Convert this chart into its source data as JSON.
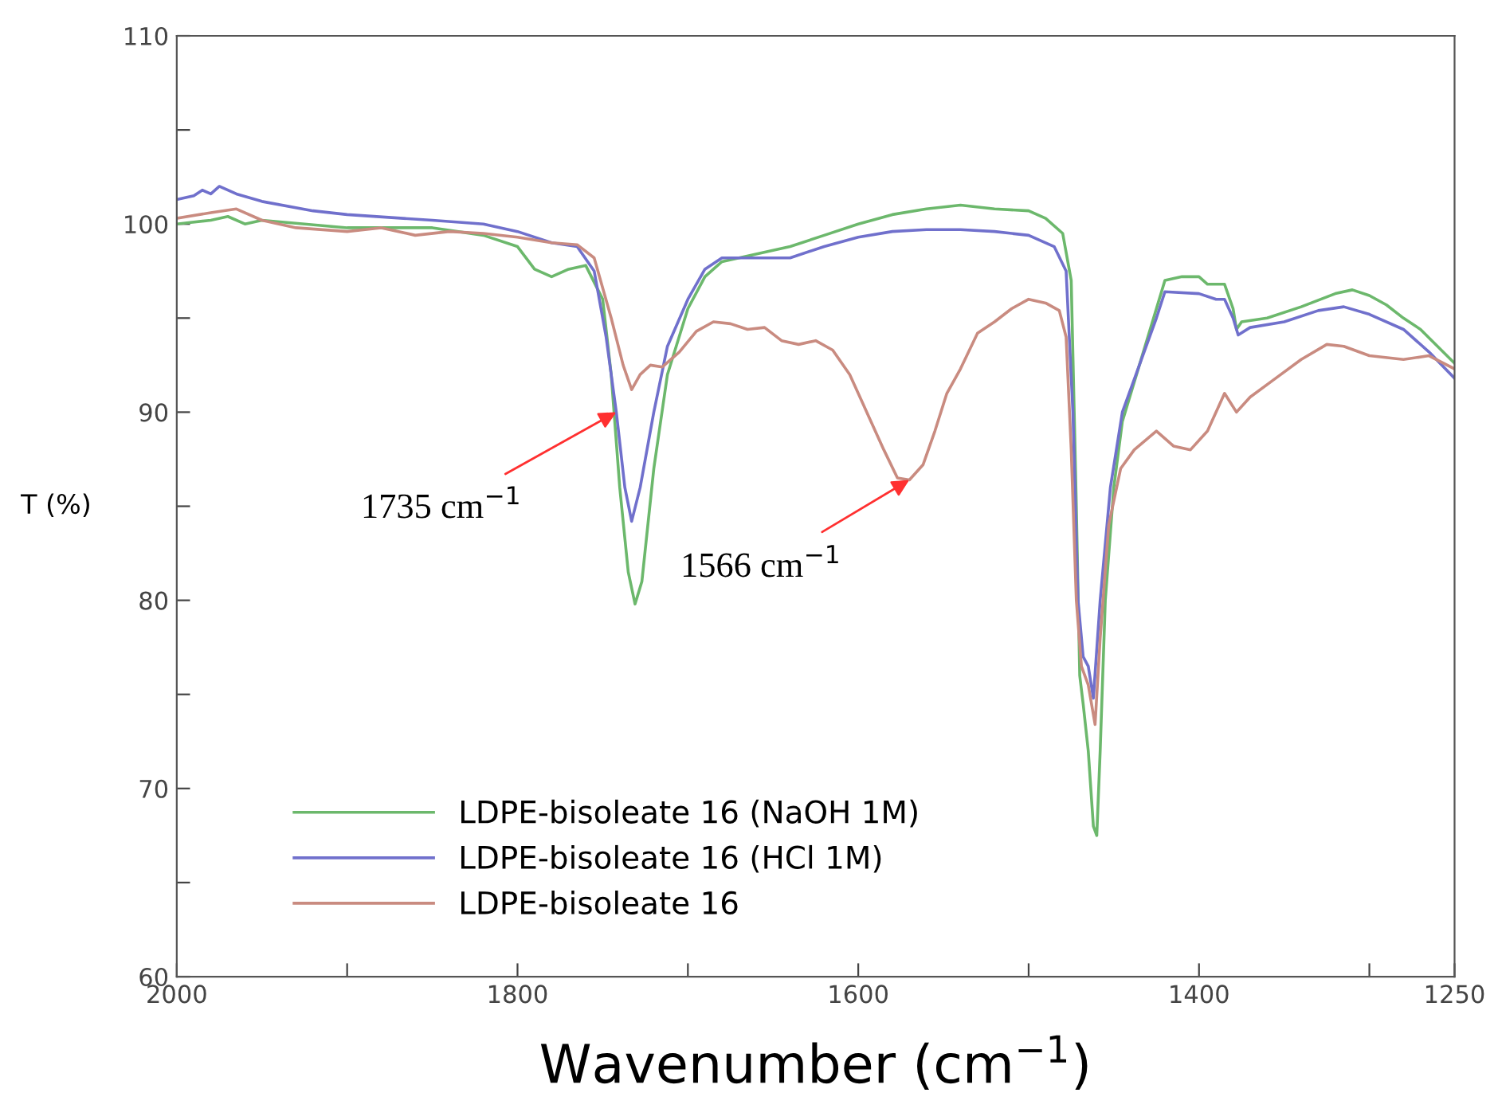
{
  "chart_data": {
    "type": "line",
    "xlabel": "Wavenumber (cm$^{−1}$)",
    "ylabel": "T (%)",
    "xlim": [
      2000,
      1250
    ],
    "ylim": [
      60,
      110
    ],
    "xticks": [
      2000,
      {
        "value": 1900,
        "label": null
      },
      1800,
      {
        "value": 1700,
        "label": null
      },
      1600,
      {
        "value": 1500,
        "label": null
      },
      1400,
      {
        "value": 1300,
        "label": null
      },
      1250
    ],
    "yticks": [
      60,
      {
        "value": 65,
        "label": null
      },
      70,
      {
        "value": 75,
        "label": null
      },
      80,
      {
        "value": 85,
        "label": null
      },
      90,
      {
        "value": 95,
        "label": null
      },
      100,
      {
        "value": 105,
        "label": null
      },
      110
    ],
    "grid": false,
    "legend": "bottom left",
    "marker": "none",
    "line_style": "solid",
    "annotations": [
      {
        "text": "1735 cm$^{−1}$",
        "x": 1742,
        "y": 90
      },
      {
        "text": "1566 cm$^{−1}$",
        "x": 1570,
        "y": 86.4
      }
    ],
    "series": [
      {
        "name": "LDPE-bisoleate 16 (NaOH 1M)",
        "color": "#6cb86c",
        "x": [
          2000,
          1980,
          1970,
          1960,
          1950,
          1900,
          1850,
          1820,
          1800,
          1790,
          1780,
          1770,
          1760,
          1750,
          1745,
          1740,
          1735,
          1731,
          1727,
          1720,
          1712,
          1700,
          1690,
          1680,
          1660,
          1640,
          1620,
          1600,
          1580,
          1560,
          1540,
          1520,
          1500,
          1490,
          1480,
          1475,
          1472,
          1470,
          1468,
          1465,
          1462,
          1460,
          1458,
          1455,
          1450,
          1445,
          1435,
          1425,
          1420,
          1410,
          1400,
          1395,
          1385,
          1380,
          1378,
          1375,
          1360,
          1340,
          1320,
          1310,
          1300,
          1290,
          1280,
          1270,
          1260,
          1250
        ],
        "values": [
          100.0,
          100.2,
          100.4,
          100.0,
          100.2,
          99.8,
          99.8,
          99.4,
          98.8,
          97.6,
          97.2,
          97.6,
          97.8,
          96,
          92,
          86,
          81.5,
          79.8,
          81,
          87,
          92,
          95.5,
          97.2,
          98.0,
          98.4,
          98.8,
          99.4,
          100.0,
          100.5,
          100.8,
          101.0,
          100.8,
          100.7,
          100.3,
          99.5,
          97,
          85,
          76,
          74.5,
          72,
          68,
          67.5,
          72,
          80,
          86,
          89.5,
          92.5,
          95.5,
          97.0,
          97.2,
          97.2,
          96.8,
          96.8,
          95.5,
          94.4,
          94.8,
          95.0,
          95.6,
          96.3,
          96.5,
          96.2,
          95.7,
          95.0,
          94.4,
          93.5,
          92.6
        ]
      },
      {
        "name": "LDPE-bisoleate 16 (HCl 1M)",
        "color": "#7070cc",
        "x": [
          2000,
          1990,
          1985,
          1980,
          1975,
          1965,
          1950,
          1920,
          1900,
          1850,
          1820,
          1800,
          1780,
          1765,
          1755,
          1748,
          1742,
          1737,
          1733,
          1728,
          1720,
          1712,
          1700,
          1690,
          1680,
          1660,
          1640,
          1620,
          1600,
          1580,
          1560,
          1540,
          1520,
          1500,
          1485,
          1478,
          1474,
          1471,
          1468,
          1465,
          1462,
          1458,
          1452,
          1445,
          1435,
          1425,
          1420,
          1400,
          1390,
          1385,
          1380,
          1377,
          1370,
          1350,
          1330,
          1315,
          1300,
          1280,
          1265,
          1250
        ],
        "values": [
          101.3,
          101.5,
          101.8,
          101.6,
          102.0,
          101.6,
          101.2,
          100.7,
          100.5,
          100.2,
          100.0,
          99.6,
          99.0,
          98.8,
          97.5,
          94,
          90,
          86,
          84.2,
          86,
          90,
          93.5,
          96,
          97.6,
          98.2,
          98.2,
          98.2,
          98.8,
          99.3,
          99.6,
          99.7,
          99.7,
          99.6,
          99.4,
          98.8,
          97.5,
          90,
          80,
          77,
          76.5,
          74.8,
          80,
          86,
          90,
          92.5,
          95,
          96.4,
          96.3,
          96.0,
          96.0,
          95,
          94.1,
          94.5,
          94.8,
          95.4,
          95.6,
          95.2,
          94.4,
          93.2,
          91.8
        ]
      },
      {
        "name": "LDPE-bisoleate 16",
        "color": "#c98b80",
        "x": [
          2000,
          1980,
          1965,
          1950,
          1930,
          1900,
          1880,
          1860,
          1840,
          1820,
          1800,
          1780,
          1765,
          1755,
          1745,
          1738,
          1733,
          1728,
          1722,
          1715,
          1705,
          1695,
          1685,
          1675,
          1665,
          1655,
          1645,
          1635,
          1625,
          1615,
          1605,
          1595,
          1585,
          1577,
          1570,
          1562,
          1555,
          1548,
          1540,
          1530,
          1520,
          1510,
          1500,
          1490,
          1482,
          1478,
          1475,
          1472,
          1469,
          1465,
          1461,
          1458,
          1453,
          1446,
          1438,
          1425,
          1415,
          1405,
          1395,
          1385,
          1378,
          1370,
          1355,
          1340,
          1325,
          1315,
          1300,
          1280,
          1265,
          1250
        ],
        "values": [
          100.3,
          100.6,
          100.8,
          100.2,
          99.8,
          99.6,
          99.8,
          99.4,
          99.6,
          99.5,
          99.3,
          99.0,
          98.9,
          98.2,
          95,
          92.5,
          91.2,
          92.0,
          92.5,
          92.4,
          93.2,
          94.3,
          94.8,
          94.7,
          94.4,
          94.5,
          93.8,
          93.6,
          93.8,
          93.3,
          92.0,
          90.0,
          88.0,
          86.5,
          86.4,
          87.2,
          89.0,
          91.0,
          92.3,
          94.2,
          94.8,
          95.5,
          96.0,
          95.8,
          95.4,
          94,
          88,
          80,
          76.5,
          75.5,
          73.4,
          78,
          84,
          87,
          88.0,
          89.0,
          88.2,
          88.0,
          89.0,
          91.0,
          90.0,
          90.8,
          91.8,
          92.8,
          93.6,
          93.5,
          93.0,
          92.8,
          93.0,
          92.3
        ]
      }
    ]
  }
}
